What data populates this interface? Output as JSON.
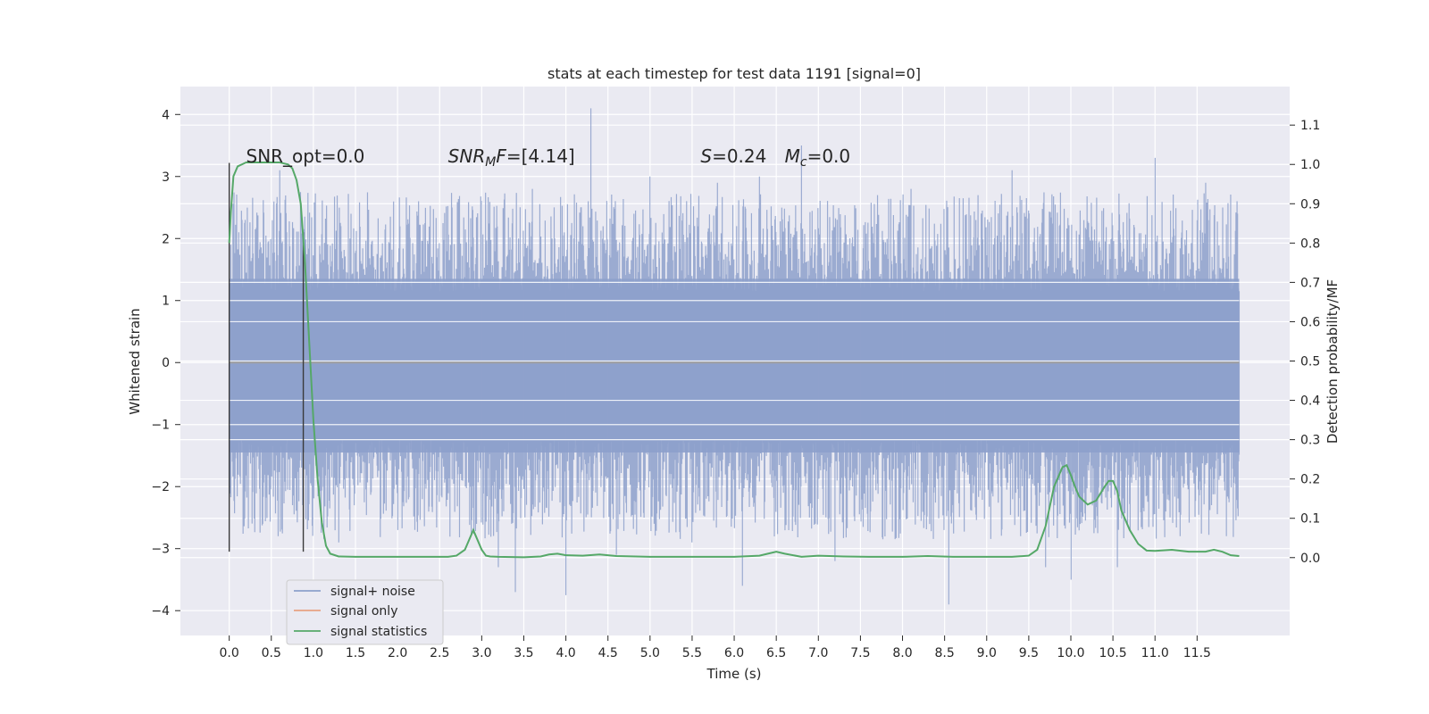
{
  "chart_data": {
    "type": "line",
    "title": "stats at each timestep for test data 1191 [signal=0]",
    "xlabel": "Time (s)",
    "ylabel": "Whitened strain",
    "y2label": "Detection probability/MF",
    "xlim": [
      -0.58,
      12.6
    ],
    "ylim": [
      -4.4,
      4.45
    ],
    "y2lim": [
      -0.198,
      1.198
    ],
    "xticks": [
      0.0,
      0.5,
      1.0,
      1.5,
      2.0,
      2.5,
      3.0,
      3.5,
      4.0,
      4.5,
      5.0,
      5.5,
      6.0,
      6.5,
      7.0,
      7.5,
      8.0,
      8.5,
      9.0,
      9.5,
      10.0,
      10.5,
      11.0,
      11.5
    ],
    "xtick_labels": [
      "0.0",
      "0.5",
      "1.0",
      "1.5",
      "2.0",
      "2.5",
      "3.0",
      "3.5",
      "4.0",
      "4.5",
      "5.0",
      "5.5",
      "6.0",
      "6.5",
      "7.0",
      "7.5",
      "8.0",
      "8.5",
      "9.0",
      "9.5",
      "10.0",
      "10.5",
      "11.0",
      "11.5"
    ],
    "yticks": [
      -4,
      -3,
      -2,
      -1,
      0,
      1,
      2,
      3,
      4
    ],
    "ytick_labels": [
      "−4",
      "−3",
      "−2",
      "−1",
      "0",
      "1",
      "2",
      "3",
      "4"
    ],
    "y2ticks": [
      0.0,
      0.1,
      0.2,
      0.3,
      0.4,
      0.5,
      0.6,
      0.7,
      0.8,
      0.9,
      1.0,
      1.1
    ],
    "y2tick_labels": [
      "0.0",
      "0.1",
      "0.2",
      "0.3",
      "0.4",
      "0.5",
      "0.6",
      "0.7",
      "0.8",
      "0.9",
      "1.0",
      "1.1"
    ],
    "grid": true,
    "legend_position": "lower-left",
    "annotations": [
      {
        "text": "SNR_opt=0.0",
        "x": 0.2,
        "y2": 1.0
      },
      {
        "text": "=[4.14]",
        "prefix": "SNR",
        "sub": "M",
        "italic_tail": "F",
        "x": 2.6,
        "y2": 1.0
      },
      {
        "text": "=0.24",
        "prefix": "S",
        "x": 5.6,
        "y2": 1.0
      },
      {
        "text": "=0.0",
        "prefix": "M",
        "sub": "c",
        "x": 6.6,
        "y2": 1.0
      }
    ],
    "vlines": [
      {
        "x": 0.0,
        "ymin": -3.05,
        "ymax": 3.22
      },
      {
        "x": 0.88,
        "ymin": -3.05,
        "ymax": 2.1
      }
    ],
    "series": [
      {
        "name": "signal+ noise",
        "color": "#8da0cb",
        "axis": "left",
        "style": "dense-noise",
        "x_range": [
          0.0,
          12.0
        ],
        "envelope_upper": 1.35,
        "envelope_lower": -1.45,
        "extremes": [
          {
            "x": 0.15,
            "y": 2.3
          },
          {
            "x": 0.4,
            "y": -2.6
          },
          {
            "x": 0.6,
            "y": 3.1
          },
          {
            "x": 1.3,
            "y": -2.9
          },
          {
            "x": 1.45,
            "y": 2.4
          },
          {
            "x": 2.0,
            "y": -2.7
          },
          {
            "x": 2.25,
            "y": 2.6
          },
          {
            "x": 2.65,
            "y": 2.5
          },
          {
            "x": 3.2,
            "y": -3.3
          },
          {
            "x": 3.4,
            "y": -3.7
          },
          {
            "x": 3.6,
            "y": 2.8
          },
          {
            "x": 4.0,
            "y": -3.75
          },
          {
            "x": 4.3,
            "y": 4.1
          },
          {
            "x": 4.6,
            "y": -3.1
          },
          {
            "x": 5.0,
            "y": 3.0
          },
          {
            "x": 5.5,
            "y": -2.9
          },
          {
            "x": 5.8,
            "y": 2.9
          },
          {
            "x": 6.1,
            "y": -3.6
          },
          {
            "x": 6.3,
            "y": 3.0
          },
          {
            "x": 6.8,
            "y": 3.5
          },
          {
            "x": 7.2,
            "y": -3.2
          },
          {
            "x": 7.7,
            "y": 2.7
          },
          {
            "x": 8.1,
            "y": 2.8
          },
          {
            "x": 8.55,
            "y": -3.9
          },
          {
            "x": 8.9,
            "y": 2.7
          },
          {
            "x": 9.3,
            "y": 3.1
          },
          {
            "x": 9.7,
            "y": -3.3
          },
          {
            "x": 10.0,
            "y": -3.5
          },
          {
            "x": 10.55,
            "y": -3.3
          },
          {
            "x": 11.0,
            "y": 3.3
          },
          {
            "x": 11.3,
            "y": -2.8
          },
          {
            "x": 11.6,
            "y": 2.9
          }
        ]
      },
      {
        "name": "signal only",
        "color": "#e8a283",
        "axis": "left",
        "style": "line",
        "x": [
          0.0,
          12.0
        ],
        "y": [
          0.0,
          0.0
        ]
      },
      {
        "name": "signal statistics",
        "color": "#55a868",
        "axis": "right",
        "style": "line",
        "x": [
          0.0,
          0.02,
          0.05,
          0.1,
          0.15,
          0.2,
          0.3,
          0.4,
          0.5,
          0.6,
          0.7,
          0.75,
          0.8,
          0.85,
          0.9,
          0.95,
          1.0,
          1.05,
          1.1,
          1.15,
          1.2,
          1.3,
          1.5,
          2.0,
          2.5,
          2.6,
          2.7,
          2.8,
          2.9,
          2.95,
          3.0,
          3.05,
          3.1,
          3.2,
          3.5,
          3.7,
          3.8,
          3.9,
          4.0,
          4.2,
          4.4,
          4.6,
          5.0,
          5.5,
          6.0,
          6.3,
          6.4,
          6.5,
          6.6,
          6.8,
          7.0,
          7.3,
          7.6,
          8.0,
          8.3,
          8.6,
          9.0,
          9.3,
          9.5,
          9.6,
          9.7,
          9.8,
          9.9,
          9.95,
          10.0,
          10.05,
          10.1,
          10.2,
          10.3,
          10.4,
          10.45,
          10.5,
          10.55,
          10.6,
          10.7,
          10.8,
          10.9,
          11.0,
          11.2,
          11.4,
          11.6,
          11.7,
          11.8,
          11.9,
          12.0
        ],
        "y": [
          0.8,
          0.88,
          0.97,
          0.995,
          1.0,
          1.005,
          1.005,
          1.005,
          1.005,
          1.005,
          1.0,
          0.99,
          0.96,
          0.9,
          0.75,
          0.55,
          0.35,
          0.2,
          0.09,
          0.03,
          0.01,
          0.003,
          0.002,
          0.002,
          0.002,
          0.002,
          0.005,
          0.02,
          0.07,
          0.045,
          0.02,
          0.005,
          0.003,
          0.002,
          0.001,
          0.003,
          0.008,
          0.01,
          0.006,
          0.005,
          0.008,
          0.004,
          0.002,
          0.002,
          0.002,
          0.005,
          0.01,
          0.015,
          0.01,
          0.002,
          0.005,
          0.003,
          0.002,
          0.002,
          0.004,
          0.002,
          0.002,
          0.002,
          0.005,
          0.02,
          0.08,
          0.18,
          0.23,
          0.235,
          0.21,
          0.18,
          0.155,
          0.135,
          0.145,
          0.18,
          0.195,
          0.195,
          0.17,
          0.12,
          0.07,
          0.035,
          0.018,
          0.017,
          0.02,
          0.015,
          0.015,
          0.02,
          0.015,
          0.006,
          0.004
        ]
      }
    ]
  }
}
